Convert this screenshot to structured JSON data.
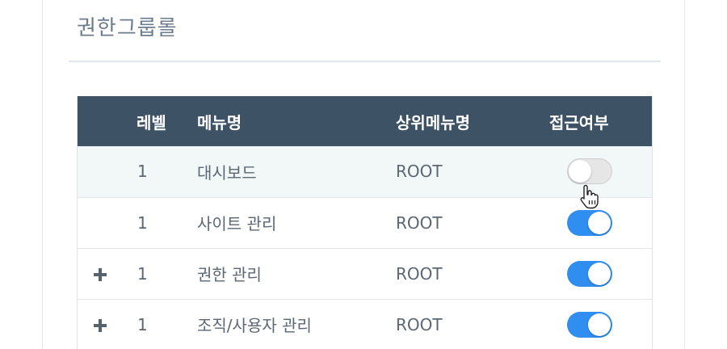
{
  "panel": {
    "title": "권한그룹롤"
  },
  "table": {
    "headers": {
      "level": "레벨",
      "menu_name": "메뉴명",
      "parent_menu": "상위메뉴명",
      "access": "접근여부"
    },
    "rows": [
      {
        "expandable": false,
        "level": "1",
        "menu_name": "대시보드",
        "parent_menu": "ROOT",
        "access": false,
        "highlighted": true
      },
      {
        "expandable": false,
        "level": "1",
        "menu_name": "사이트 관리",
        "parent_menu": "ROOT",
        "access": true,
        "highlighted": false
      },
      {
        "expandable": true,
        "level": "1",
        "menu_name": "권한 관리",
        "parent_menu": "ROOT",
        "access": true,
        "highlighted": false
      },
      {
        "expandable": true,
        "level": "1",
        "menu_name": "조직/사용자 관리",
        "parent_menu": "ROOT",
        "access": true,
        "highlighted": false
      }
    ]
  },
  "colors": {
    "header_bg": "#3e5266",
    "toggle_on": "#2f8ef0",
    "toggle_off": "#e6e6e6",
    "row_highlight": "#f2f8f8"
  },
  "icons": {
    "expand": "plus-icon",
    "cursor": "hand-pointer-icon"
  }
}
